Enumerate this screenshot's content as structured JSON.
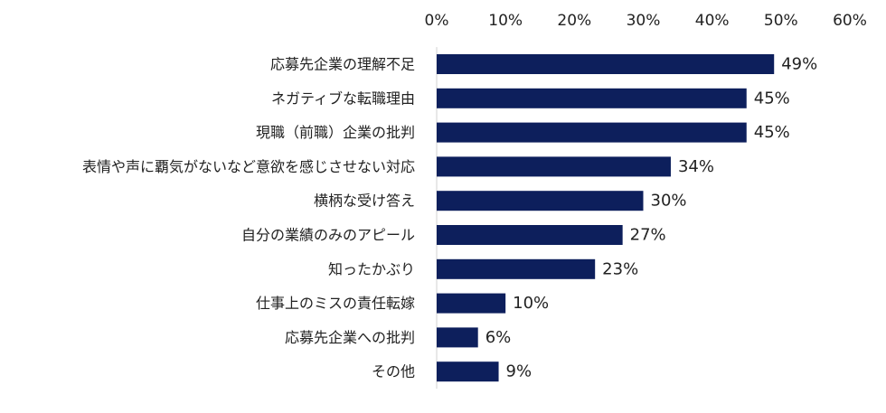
{
  "chart_data": {
    "type": "bar",
    "orientation": "horizontal",
    "title": "",
    "xlabel": "",
    "ylabel": "",
    "xlim": [
      0,
      60
    ],
    "tick_values": [
      0,
      10,
      20,
      30,
      40,
      50,
      60
    ],
    "tick_labels": [
      "0%",
      "10%",
      "20%",
      "30%",
      "40%",
      "50%",
      "60%"
    ],
    "grid": false,
    "legend": "none",
    "bar_color": "#0d1f5c",
    "categories": [
      "応募先企業の理解不足",
      "ネガティブな転職理由",
      "現職（前職）企業の批判",
      "表情や声に覇気がないなど意欲を感じさせない対応",
      "横柄な受け答え",
      "自分の業績のみのアピール",
      "知ったかぶり",
      "仕事上のミスの責任転嫁",
      "応募先企業への批判",
      "その他"
    ],
    "values": [
      49,
      45,
      45,
      34,
      30,
      27,
      23,
      10,
      6,
      9
    ],
    "value_labels": [
      "49%",
      "45%",
      "45%",
      "34%",
      "30%",
      "27%",
      "23%",
      "10%",
      "6%",
      "9%"
    ]
  }
}
